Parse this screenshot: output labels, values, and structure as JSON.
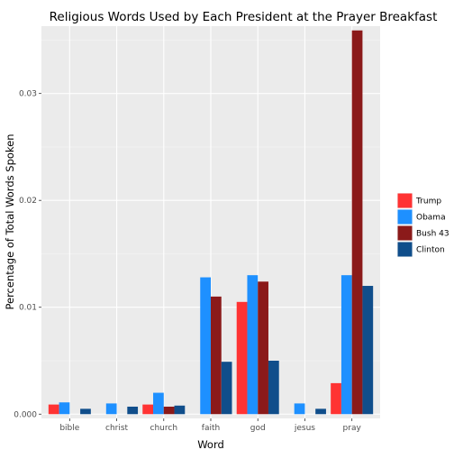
{
  "chart_data": {
    "type": "bar",
    "title": "Religious Words Used by Each President at the Prayer Breakfast",
    "xlabel": "Word",
    "ylabel": "Percentage of Total Words Spoken",
    "categories": [
      "bible",
      "christ",
      "church",
      "faith",
      "god",
      "jesus",
      "pray"
    ],
    "ylim": [
      -0.0004,
      0.0363
    ],
    "yticks": [
      0.0,
      0.01,
      0.02,
      0.03
    ],
    "ytick_labels": [
      "0.000",
      "0.01",
      "0.02",
      "0.03"
    ],
    "grid": true,
    "legend_position": "right",
    "series": [
      {
        "name": "Trump",
        "color": "#ff3333",
        "values": [
          0.0009,
          0,
          0.0009,
          0,
          0.0105,
          0,
          0.0029
        ]
      },
      {
        "name": "Obama",
        "color": "#1e90ff",
        "values": [
          0.0011,
          0.001,
          0.002,
          0.0128,
          0.013,
          0.001,
          0.013
        ]
      },
      {
        "name": "Bush 43",
        "color": "#8b1a1a",
        "values": [
          0,
          0,
          0.0007,
          0.011,
          0.0124,
          0,
          0.0359
        ]
      },
      {
        "name": "Clinton",
        "color": "#104e8b",
        "values": [
          0.0005,
          0.0007,
          0.0008,
          0.0049,
          0.005,
          0.0005,
          0.012
        ]
      }
    ]
  }
}
